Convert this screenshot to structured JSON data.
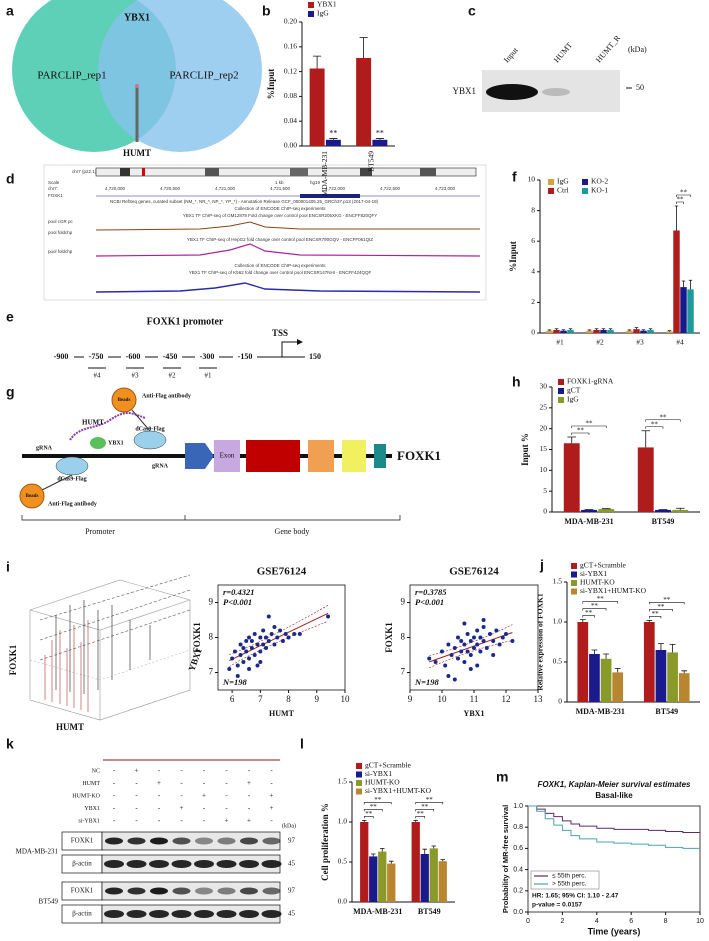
{
  "panel_labels": [
    "a",
    "b",
    "c",
    "d",
    "e",
    "f",
    "g",
    "h",
    "i",
    "j",
    "k",
    "l",
    "m"
  ],
  "venn": {
    "center": "YBX1",
    "left": "PARCLIP_rep1",
    "right": "PARCLIP_rep2",
    "pointer": "HUMT"
  },
  "blot_c": {
    "lanes": [
      "Input",
      "HUMT",
      "HUMT_R"
    ],
    "unit": "(kDa)",
    "protein": "YBX1",
    "marker": "50"
  },
  "genome_d": {
    "ideogram": "chr7 (p22.1)",
    "scale": "Scale",
    "chrom": "chr7:",
    "gene": "FOXK1",
    "span": "1 kb",
    "build": "hg19",
    "positions": [
      "4,720,000",
      "4,720,500",
      "4,721,000",
      "4,721,500",
      "4,722,000",
      "4,722,500",
      "4,723,000"
    ],
    "refseq": "NCBI RefSeq genes, curated subset (NM_*, NR_*, NP_*, YP_*) - Annotation Release GCF_000001405.25_GRCh37.p13 (2017-04-19)",
    "collection": "Collection of ENCODE ChIP-seq experiments",
    "track1": "YBX1 TF ChIP-seq of GM12878 Fold change over control pool ENCSR205XKG - ENCFF820QFY",
    "track2": "YBX1 TF ChIP-seq of HepG2 fold change over control pool ENCSR790GQV - ENCFF061QIZ",
    "track3": "YBX1 TF ChIP-seq of K562 fold change over control pool ENCSR147NHI - ENCFF424QQF",
    "side1": "pool cGR pc",
    "side2": "pool foldchp",
    "side3": "pool foldchp"
  },
  "promoter_e": {
    "title": "FOXK1 promoter",
    "tss": "TSS",
    "positions": [
      "-900",
      "-750",
      "-600",
      "-450",
      "-300",
      "-150",
      "150"
    ],
    "sites": [
      "#4",
      "#3",
      "#2",
      "#1"
    ]
  },
  "diagram_g": {
    "beads": "Beads",
    "antibody": "Anti-Flag antibody",
    "rna": "HUMT",
    "dcas9": "dCas9-Flag",
    "protein": "YBX1",
    "grna": "gRNA",
    "exon": "Exon",
    "gene": "FOXK1",
    "promoter": "Promoter",
    "body": "Gene body"
  },
  "plot3d_i": {
    "z": "FOXK1",
    "x": "HUMT",
    "y": "YBX1"
  },
  "blot_k": {
    "treatments": [
      {
        "label": "NC",
        "signs": [
          "-",
          "+",
          "-",
          "-",
          "-",
          "-",
          "-",
          "-"
        ]
      },
      {
        "label": "HUMT",
        "signs": [
          "-",
          "-",
          "+",
          "-",
          "-",
          "-",
          "+",
          "-"
        ]
      },
      {
        "label": "HUMT-KO",
        "signs": [
          "-",
          "-",
          "-",
          "-",
          "+",
          "-",
          "-",
          "+"
        ]
      },
      {
        "label": "YBX1",
        "signs": [
          "-",
          "-",
          "-",
          "+",
          "-",
          "-",
          "-",
          "+"
        ]
      },
      {
        "label": "si-YBX1",
        "signs": [
          "-",
          "-",
          "-",
          "-",
          "-",
          "+",
          "+",
          "-"
        ]
      }
    ],
    "cells": [
      "MDA-MB-231",
      "BT549"
    ],
    "proteins": [
      "FOXK1",
      "β-actin"
    ],
    "unit": "(kDa)",
    "markers": [
      "97",
      "45"
    ]
  },
  "chart_data": [
    {
      "type": "bar",
      "ylabel": "%Input",
      "categories": [
        "MDA-MB-231",
        "BT549"
      ],
      "series": [
        {
          "name": "YBX1",
          "color": "#b01c1c",
          "values": [
            0.125,
            0.142
          ],
          "errors": [
            0.02,
            0.033
          ]
        },
        {
          "name": "IgG",
          "color": "#1a1a8c",
          "values": [
            0.01,
            0.01
          ],
          "errors": [
            0.002,
            0.002
          ]
        }
      ],
      "ylim": [
        0,
        0.2
      ],
      "yticks": [
        {
          "value": 0,
          "label": "0.00"
        },
        0.04,
        0.08,
        0.12,
        0.16,
        {
          "value": 0.2,
          "label": "0.20"
        }
      ],
      "annotations": [
        "**",
        "**"
      ]
    },
    {
      "type": "bar",
      "ylabel": "%Input",
      "categories": [
        "#1",
        "#2",
        "#3",
        "#4"
      ],
      "series": [
        {
          "name": "IgG",
          "color": "#d8a03a",
          "values": [
            0.15,
            0.15,
            0.15,
            0.1
          ],
          "errors": [
            0.05,
            0.05,
            0.05,
            0.05
          ]
        },
        {
          "name": "Ctrl",
          "color": "#b01c1c",
          "values": [
            0.2,
            0.2,
            0.25,
            6.7
          ],
          "errors": [
            0.08,
            0.08,
            0.1,
            1.6
          ]
        },
        {
          "name": "KO-2",
          "color": "#1a1a8c",
          "values": [
            0.15,
            0.2,
            0.15,
            3.0
          ],
          "errors": [
            0.06,
            0.08,
            0.06,
            0.4
          ]
        },
        {
          "name": "KO-1",
          "color": "#1a9a9a",
          "values": [
            0.2,
            0.2,
            0.2,
            2.85
          ],
          "errors": [
            0.08,
            0.08,
            0.08,
            0.6
          ]
        }
      ],
      "ylim": [
        0,
        10
      ],
      "yticks": [
        0,
        2,
        4,
        6,
        8,
        10
      ],
      "annotations": [
        "**",
        "**"
      ]
    },
    {
      "type": "bar",
      "ylabel": "Input %",
      "categories": [
        "MDA-MB-231",
        "BT549"
      ],
      "series": [
        {
          "name": "FOXK1-gRNA",
          "color": "#b01c1c",
          "values": [
            16.5,
            15.5
          ],
          "errors": [
            1.5,
            4.0
          ]
        },
        {
          "name": "gCT",
          "color": "#1a1a8c",
          "values": [
            0.5,
            0.5
          ],
          "errors": [
            0.1,
            0.1
          ]
        },
        {
          "name": "IgG",
          "color": "#8a9a2a",
          "values": [
            0.7,
            0.5
          ],
          "errors": [
            0.1,
            0.4
          ]
        }
      ],
      "ylim": [
        0,
        30
      ],
      "yticks": [
        0,
        5,
        10,
        15,
        20,
        25,
        30
      ],
      "annotations": [
        "**",
        "**",
        "**",
        "**"
      ]
    },
    {
      "type": "bar",
      "ylabel": "Relative expression of FOXK1",
      "categories": [
        "MDA-MB-231",
        "BT549"
      ],
      "series": [
        {
          "name": "gCT+Scramble",
          "color": "#b01c1c",
          "values": [
            1.0,
            1.0
          ],
          "errors": [
            0.03,
            0.02
          ]
        },
        {
          "name": "si-YBX1",
          "color": "#1a1a8c",
          "values": [
            0.6,
            0.65
          ],
          "errors": [
            0.05,
            0.08
          ]
        },
        {
          "name": "HUMT-KO",
          "color": "#8a9a2a",
          "values": [
            0.54,
            0.62
          ],
          "errors": [
            0.06,
            0.1
          ]
        },
        {
          "name": "si-YBX1+HUMT-KO",
          "color": "#b8862e",
          "values": [
            0.37,
            0.36
          ],
          "errors": [
            0.05,
            0.03
          ]
        }
      ],
      "ylim": [
        0,
        1.5
      ],
      "yticks": [
        0,
        0.5,
        {
          "value": 1,
          "label": "1.0"
        },
        1.5
      ],
      "annotations": [
        "**",
        "**",
        "**",
        "**",
        "**",
        "**"
      ]
    },
    {
      "type": "bar",
      "ylabel": "Cell proliferation %",
      "categories": [
        "MDA-MB-231",
        "BT549"
      ],
      "series": [
        {
          "name": "gCT+Scramble",
          "color": "#b01c1c",
          "values": [
            1.0,
            1.0
          ],
          "errors": [
            0.02,
            0.02
          ]
        },
        {
          "name": "si-YBX1",
          "color": "#1a1a8c",
          "values": [
            0.57,
            0.6
          ],
          "errors": [
            0.03,
            0.06
          ]
        },
        {
          "name": "HUMT-KO",
          "color": "#8a9a2a",
          "values": [
            0.63,
            0.67
          ],
          "errors": [
            0.04,
            0.03
          ]
        },
        {
          "name": "si-YBX1+HUMT-KO",
          "color": "#b8862e",
          "values": [
            0.48,
            0.51
          ],
          "errors": [
            0.03,
            0.02
          ]
        }
      ],
      "ylim": [
        0,
        1.5
      ],
      "yticks": [
        {
          "value": 0,
          "label": "0.0"
        },
        0.5,
        {
          "value": 1,
          "label": "1.0"
        },
        1.5
      ],
      "annotations": [
        "**",
        "**",
        "**",
        "**",
        "**",
        "**"
      ]
    },
    {
      "type": "scatter",
      "title": "GSE76124",
      "xlabel": "HUMT",
      "ylabel": "FOXK1",
      "color": "#1a2a8c",
      "line_color": "#b01c1c",
      "annotations": [
        "r=0.4321",
        "P<0.001",
        "N=198"
      ],
      "x": [
        6.0,
        6.1,
        6.2,
        6.3,
        6.3,
        6.4,
        6.4,
        6.5,
        6.5,
        6.6,
        6.6,
        6.7,
        6.7,
        6.8,
        6.8,
        6.9,
        6.9,
        7.0,
        7.0,
        7.1,
        7.1,
        7.2,
        7.2,
        7.3,
        7.4,
        7.5,
        7.5,
        7.6,
        7.7,
        7.8,
        7.9,
        8.0,
        8.2,
        8.4,
        6.2,
        6.6,
        7.0,
        7.3,
        5.9,
        9.4
      ],
      "values": [
        7.4,
        7.6,
        7.2,
        7.8,
        7.5,
        7.7,
        7.3,
        7.9,
        7.6,
        8.0,
        7.4,
        7.7,
        7.9,
        8.1,
        7.5,
        7.8,
        7.2,
        8.0,
        7.6,
        8.2,
        7.8,
        7.7,
        8.0,
        7.9,
        8.1,
        7.8,
        8.3,
        8.0,
        8.2,
        7.9,
        8.1,
        8.0,
        8.1,
        8.1,
        6.9,
        7.1,
        7.3,
        8.6,
        7.1,
        8.6
      ],
      "xlim": [
        5.5,
        10
      ],
      "xticks": [
        6,
        7,
        8,
        9,
        10
      ],
      "ylim": [
        6.5,
        9.5
      ],
      "yticks": [
        7,
        8,
        9
      ]
    },
    {
      "type": "scatter",
      "title": "GSE76124",
      "xlabel": "YBX1",
      "ylabel": "FOXK1",
      "color": "#1a2a8c",
      "line_color": "#b01c1c",
      "annotations": [
        "r=0.3785",
        "P<0.001",
        "N=198"
      ],
      "x": [
        9.6,
        9.8,
        10.0,
        10.1,
        10.2,
        10.3,
        10.4,
        10.5,
        10.5,
        10.6,
        10.6,
        10.7,
        10.7,
        10.8,
        10.8,
        10.9,
        10.9,
        11.0,
        11.0,
        11.1,
        11.1,
        11.2,
        11.2,
        11.3,
        11.3,
        11.4,
        11.5,
        11.6,
        11.7,
        11.8,
        11.9,
        12.0,
        12.2,
        10.4,
        10.9,
        11.3,
        10.2,
        11.6,
        10.7,
        11.1
      ],
      "values": [
        7.4,
        7.3,
        7.6,
        7.2,
        7.8,
        7.5,
        7.7,
        7.4,
        8.0,
        7.6,
        7.9,
        7.3,
        7.8,
        8.1,
        7.6,
        7.9,
        7.5,
        8.0,
        7.7,
        8.2,
        7.8,
        7.6,
        8.0,
        7.9,
        8.3,
        7.7,
        8.1,
        7.9,
        8.2,
        7.8,
        8.0,
        8.1,
        7.9,
        6.8,
        7.1,
        8.5,
        6.9,
        7.5,
        8.4,
        7.2
      ],
      "xlim": [
        9,
        13
      ],
      "xticks": [
        9,
        10,
        11,
        12,
        13
      ],
      "ylim": [
        6.5,
        9.5
      ],
      "yticks": [
        7,
        8,
        9
      ]
    },
    {
      "type": "survival",
      "title": "FOXK1, Kaplan-Meier survival estimates",
      "subtitle": "Basal-like",
      "xlabel": "Time (years)",
      "ylabel": "Probability of MR-free survival",
      "x": [
        0,
        0.5,
        1,
        1.5,
        2,
        2.5,
        3,
        4,
        5,
        6,
        7,
        8,
        9,
        10
      ],
      "series": [
        {
          "name": "≤ 55th perc.",
          "color": "#5b2a6b",
          "values": [
            1,
            0.97,
            0.93,
            0.9,
            0.86,
            0.83,
            0.81,
            0.79,
            0.78,
            0.78,
            0.77,
            0.76,
            0.75,
            0.75
          ]
        },
        {
          "name": "> 55th perc.",
          "color": "#4ba3b0",
          "values": [
            1,
            0.95,
            0.88,
            0.82,
            0.77,
            0.72,
            0.69,
            0.66,
            0.65,
            0.64,
            0.63,
            0.61,
            0.6,
            0.6
          ]
        }
      ],
      "annotations": [
        "HR: 1.65; 95% CI: 1.10 - 2.47",
        "p-value = 0.0157"
      ],
      "xlim": [
        0,
        10
      ],
      "xticks": [
        0,
        2,
        4,
        6,
        8,
        10
      ],
      "ylim": [
        0,
        1
      ],
      "yticks": [
        {
          "value": 0,
          "label": "0.0"
        },
        0.2,
        0.4,
        0.6,
        0.8,
        {
          "value": 1,
          "label": "1.0"
        }
      ]
    }
  ]
}
